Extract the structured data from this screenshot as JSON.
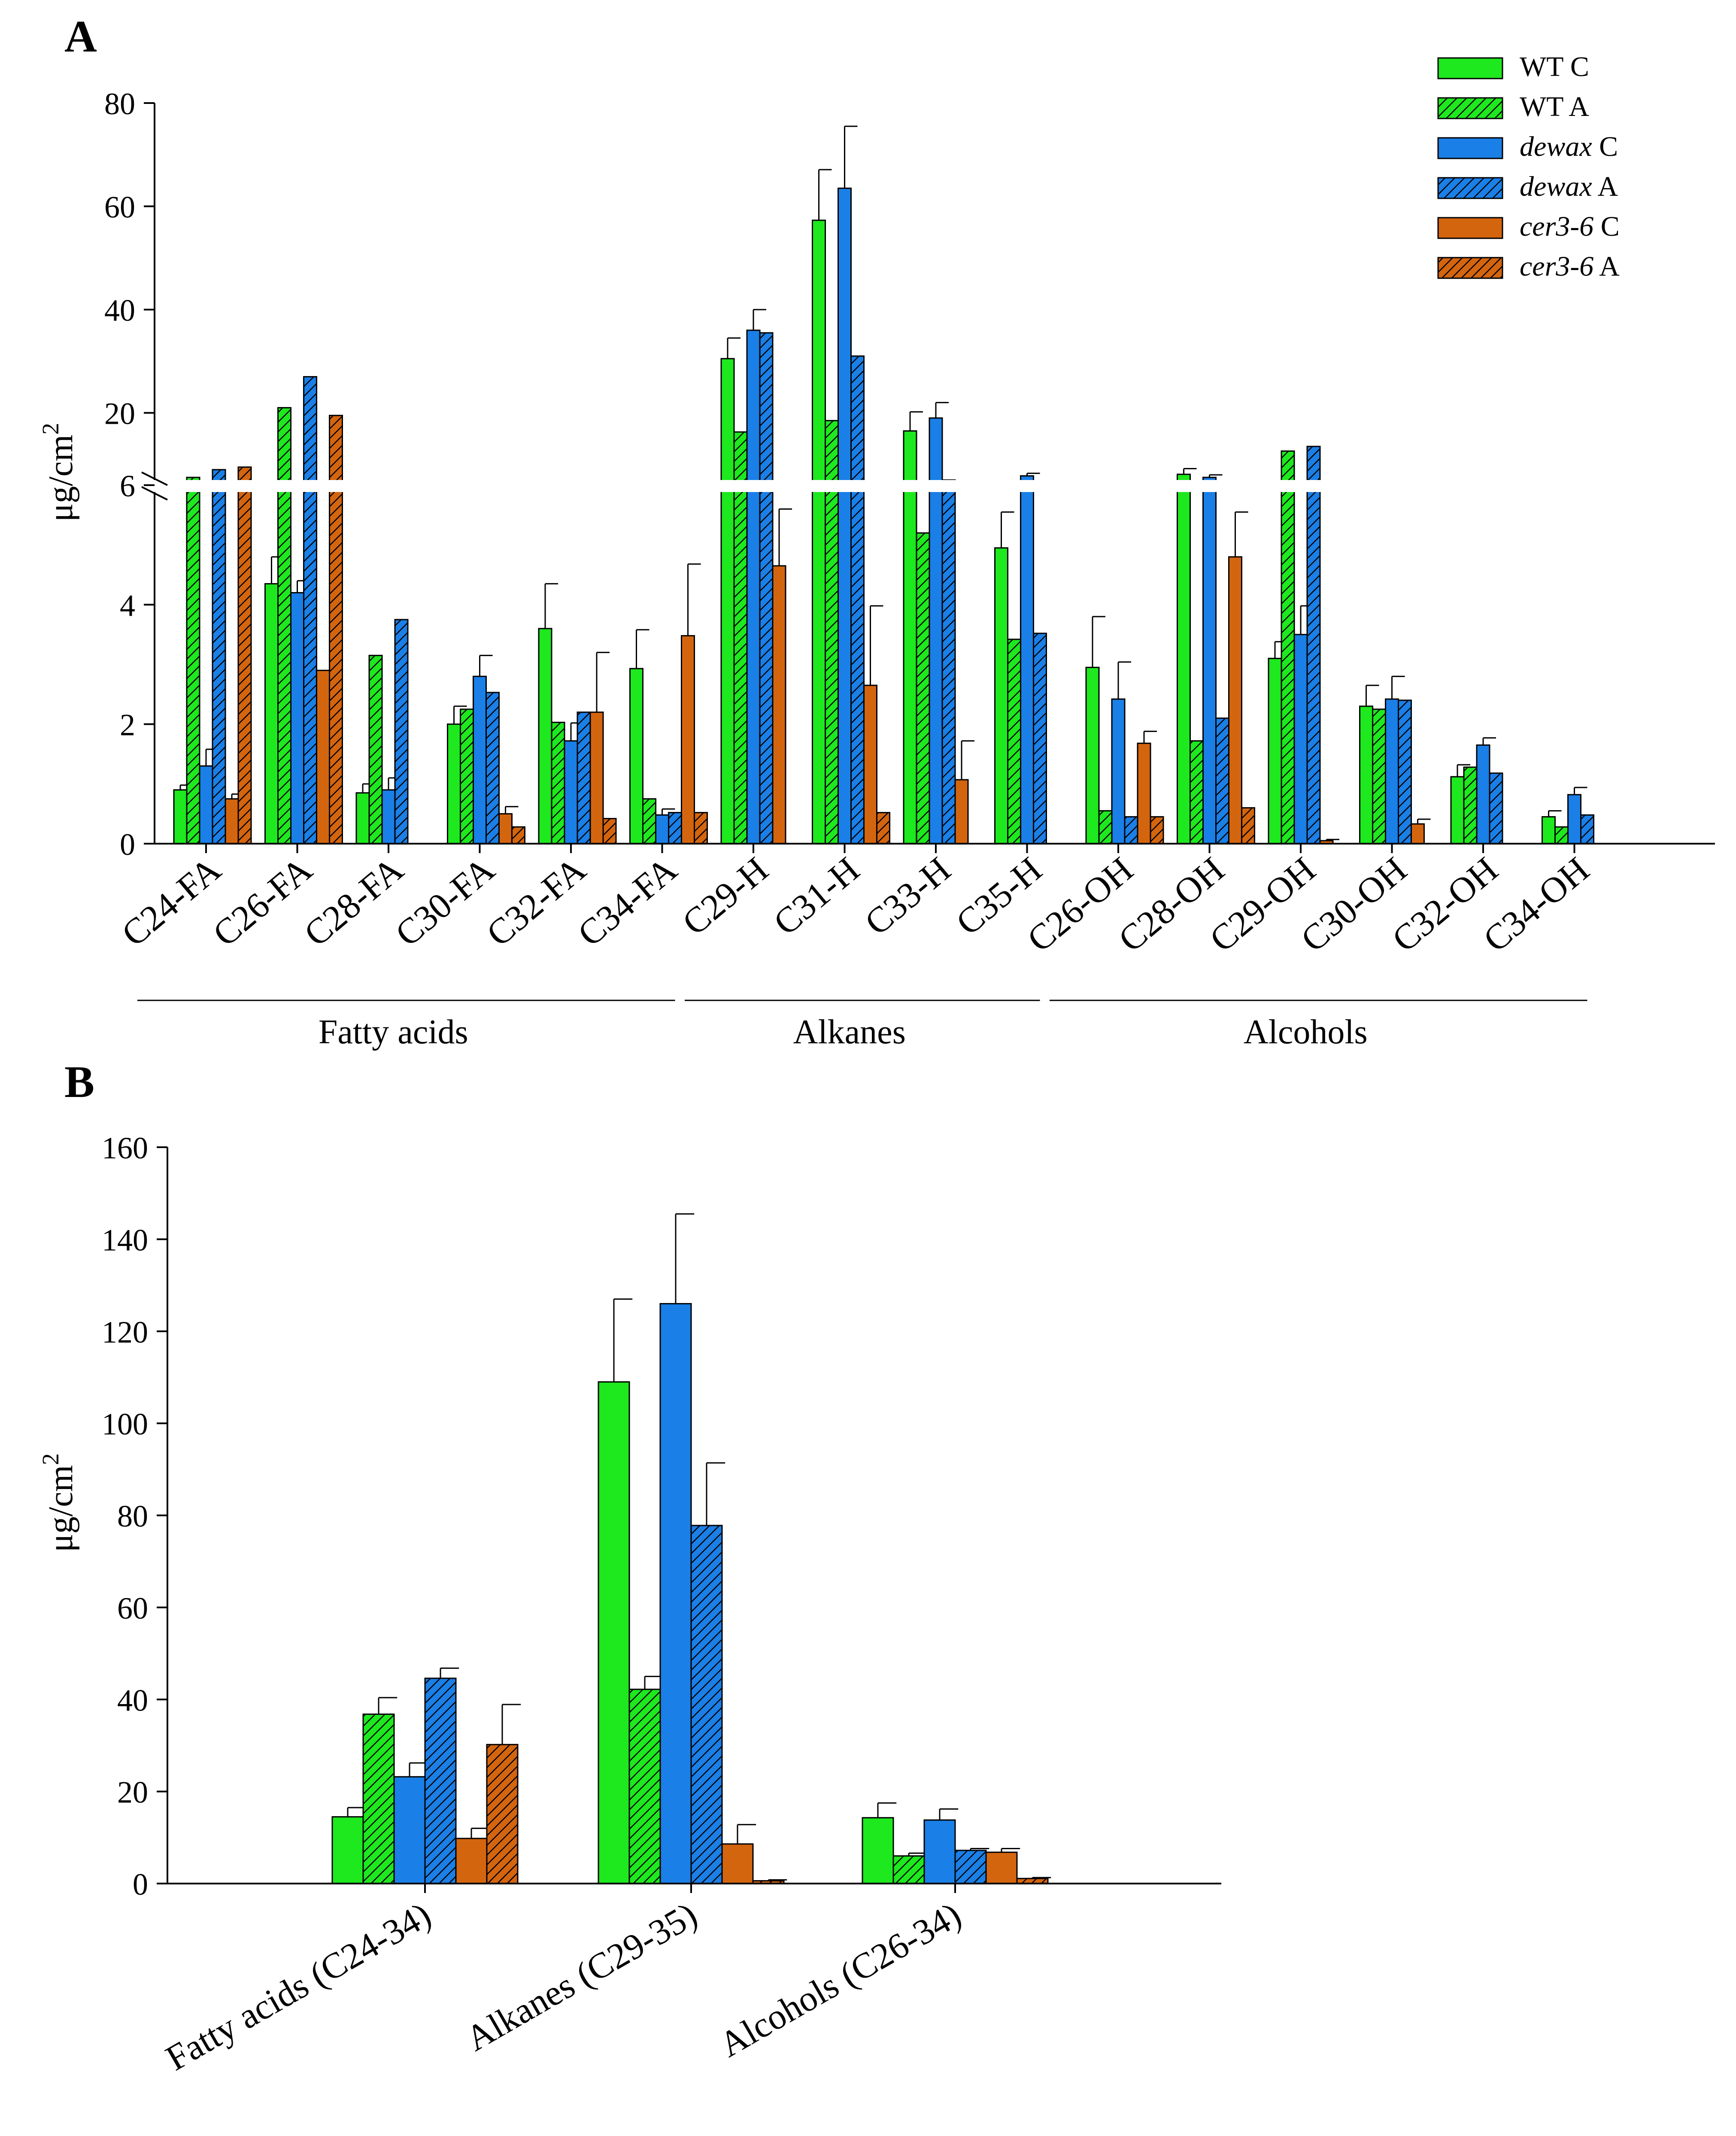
{
  "figure": {
    "panel_a_label": "A",
    "panel_b_label": "B"
  },
  "legend": [
    {
      "genotype": "WT",
      "cond": "C",
      "italic": false,
      "color": "#1ee81e",
      "hatch": false
    },
    {
      "genotype": "WT",
      "cond": "A",
      "italic": false,
      "color": "#1ee81e",
      "hatch": true
    },
    {
      "genotype": "dewax",
      "cond": "C",
      "italic": true,
      "color": "#1a7fe6",
      "hatch": false
    },
    {
      "genotype": "dewax",
      "cond": "A",
      "italic": true,
      "color": "#1a7fe6",
      "hatch": true
    },
    {
      "genotype": "cer3-6",
      "cond": "C",
      "italic": true,
      "color": "#d4650f",
      "hatch": false
    },
    {
      "genotype": "cer3-6",
      "cond": "A",
      "italic": true,
      "color": "#d4650f",
      "hatch": true
    }
  ],
  "chart_data": [
    {
      "panel": "A",
      "type": "bar",
      "ylabel": "μg/cm2",
      "ylabel_base": "μg/cm",
      "ylabel_sup": "2",
      "axis_break": {
        "lower_range": [
          0,
          6
        ],
        "upper_range": [
          6,
          80
        ]
      },
      "lower_ticks": [
        "0",
        "2",
        "4",
        "6"
      ],
      "upper_ticks": [
        "20",
        "40",
        "60",
        "80"
      ],
      "categories": [
        "C24-FA",
        "C26-FA",
        "C28-FA",
        "C30-FA",
        "C32-FA",
        "C34-FA",
        "C29-H",
        "C31-H",
        "C33-H",
        "C35-H",
        "C26-OH",
        "C28-OH",
        "C29-OH",
        "C30-OH",
        "C32-OH",
        "C34-OH"
      ],
      "groups": [
        {
          "label": "Fatty acids",
          "first": 0,
          "last": 5
        },
        {
          "label": "Alkanes",
          "first": 6,
          "last": 9
        },
        {
          "label": "Alcohols",
          "first": 10,
          "last": 15
        }
      ],
      "series": [
        {
          "name": "WT C",
          "values": [
            0.9,
            4.35,
            0.85,
            2.0,
            3.6,
            2.93,
            30.5,
            57.3,
            16.5,
            4.95,
            2.95,
            8.1,
            3.1,
            2.3,
            1.12,
            0.45
          ],
          "errors": [
            0.08,
            0.45,
            0.15,
            0.3,
            0.75,
            0.65,
            4.0,
            9.8,
            3.7,
            0.6,
            0.85,
            1.1,
            0.28,
            0.35,
            0.2,
            0.1
          ]
        },
        {
          "name": "WT A",
          "values": [
            7.5,
            21.0,
            3.15,
            2.25,
            2.03,
            0.75,
            16.3,
            18.5,
            5.2,
            3.42,
            0.55,
            1.72,
            12.6,
            2.25,
            1.28,
            0.28
          ]
        },
        {
          "name": "dewax C",
          "values": [
            1.3,
            4.2,
            0.9,
            2.8,
            1.72,
            0.48,
            36.0,
            63.5,
            19.0,
            7.8,
            2.42,
            7.5,
            3.5,
            2.42,
            1.65,
            0.82
          ],
          "errors": [
            0.28,
            0.2,
            0.2,
            0.35,
            0.3,
            0.1,
            4.0,
            12.0,
            3.0,
            0.5,
            0.62,
            0.5,
            0.48,
            0.38,
            0.12,
            0.12
          ]
        },
        {
          "name": "dewax A",
          "values": [
            9.0,
            27.0,
            3.75,
            2.53,
            2.2,
            0.52,
            35.5,
            31.0,
            7.0,
            3.52,
            0.45,
            2.1,
            13.5,
            2.4,
            1.18,
            0.48
          ]
        },
        {
          "name": "cer3-6 C",
          "values": [
            0.75,
            2.9,
            null,
            0.5,
            2.2,
            3.48,
            4.65,
            2.65,
            1.07,
            null,
            1.68,
            4.8,
            0.05,
            0.33,
            null,
            null
          ],
          "errors": [
            0.08,
            0.0,
            null,
            0.12,
            1.0,
            1.2,
            0.95,
            1.33,
            0.65,
            null,
            0.2,
            0.75,
            0.02,
            0.08,
            null,
            null
          ]
        },
        {
          "name": "cer3-6 A",
          "values": [
            9.5,
            19.5,
            null,
            0.28,
            0.42,
            0.52,
            null,
            0.52,
            null,
            null,
            0.45,
            0.6,
            null,
            null,
            null,
            null
          ]
        }
      ]
    },
    {
      "panel": "B",
      "type": "bar",
      "ylabel": "μg/cm2",
      "ylabel_base": "μg/cm",
      "ylabel_sup": "2",
      "ylim": [
        0,
        160
      ],
      "yticks": [
        "0",
        "20",
        "40",
        "60",
        "80",
        "100",
        "120",
        "140",
        "160"
      ],
      "categories": [
        "Fatty acids (C24-34)",
        "Alkanes (C29-35)",
        "Alcohols (C26-34)"
      ],
      "series": [
        {
          "name": "WT C",
          "values": [
            14.5,
            109.0,
            14.3
          ],
          "errors": [
            2.0,
            18.0,
            3.2
          ]
        },
        {
          "name": "WT A",
          "values": [
            36.8,
            42.2,
            6.0
          ],
          "errors": [
            3.6,
            2.8,
            0.6
          ]
        },
        {
          "name": "dewax C",
          "values": [
            23.2,
            126.0,
            13.8
          ],
          "errors": [
            3.0,
            19.5,
            2.4
          ]
        },
        {
          "name": "dewax A",
          "values": [
            44.6,
            77.8,
            7.2
          ],
          "errors": [
            2.2,
            13.6,
            0.4
          ]
        },
        {
          "name": "cer3-6 C",
          "values": [
            9.8,
            8.6,
            6.8
          ],
          "errors": [
            2.2,
            4.2,
            0.8
          ]
        },
        {
          "name": "cer3-6 A",
          "values": [
            30.2,
            0.6,
            1.1
          ],
          "errors": [
            8.7,
            0.2,
            0.2
          ]
        }
      ]
    }
  ]
}
